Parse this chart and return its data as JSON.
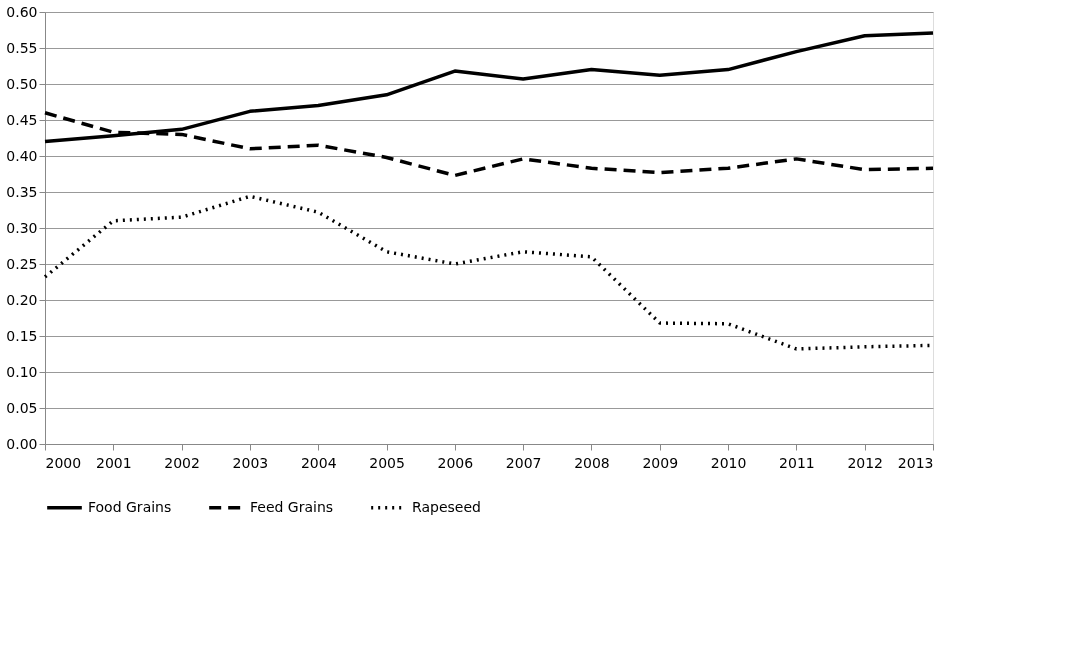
{
  "chart_data": {
    "type": "line",
    "categories": [
      "2000",
      "2001",
      "2002",
      "2003",
      "2004",
      "2005",
      "2006",
      "2007",
      "2008",
      "2009",
      "2010",
      "2011",
      "2012",
      "2013"
    ],
    "series": [
      {
        "name": "Food Grains",
        "color": "#000000",
        "line_style": "solid",
        "values": [
          0.42,
          0.428,
          0.437,
          0.462,
          0.47,
          0.485,
          0.518,
          0.507,
          0.52,
          0.512,
          0.52,
          0.545,
          0.567,
          0.571
        ]
      },
      {
        "name": "Feed Grains",
        "color": "#000000",
        "line_style": "dashed",
        "values": [
          0.46,
          0.433,
          0.43,
          0.41,
          0.415,
          0.398,
          0.373,
          0.396,
          0.383,
          0.377,
          0.383,
          0.396,
          0.381,
          0.383
        ]
      },
      {
        "name": "Rapeseed",
        "color": "#000000",
        "line_style": "dotted",
        "values": [
          0.232,
          0.31,
          0.315,
          0.344,
          0.322,
          0.267,
          0.25,
          0.267,
          0.26,
          0.168,
          0.167,
          0.132,
          0.135,
          0.137
        ]
      }
    ],
    "ylim": [
      0,
      0.6
    ],
    "yticks": [
      {
        "value": 0,
        "label": "0.00"
      },
      {
        "value": 0.05,
        "label": "0.05"
      },
      {
        "value": 0.1,
        "label": "0.10"
      },
      {
        "value": 0.15,
        "label": "0.15"
      },
      {
        "value": 0.2,
        "label": "0.20"
      },
      {
        "value": 0.25,
        "label": "0.25"
      },
      {
        "value": 0.3,
        "label": "0.30"
      },
      {
        "value": 0.35,
        "label": "0.35"
      },
      {
        "value": 0.4,
        "label": "0.40"
      },
      {
        "value": 0.45,
        "label": "0.45"
      },
      {
        "value": 0.5,
        "label": "0.50"
      },
      {
        "value": 0.55,
        "label": "0.55"
      },
      {
        "value": 0.6,
        "label": "0.60"
      }
    ],
    "grid": "y",
    "legend": "bottom",
    "marker": "none"
  }
}
